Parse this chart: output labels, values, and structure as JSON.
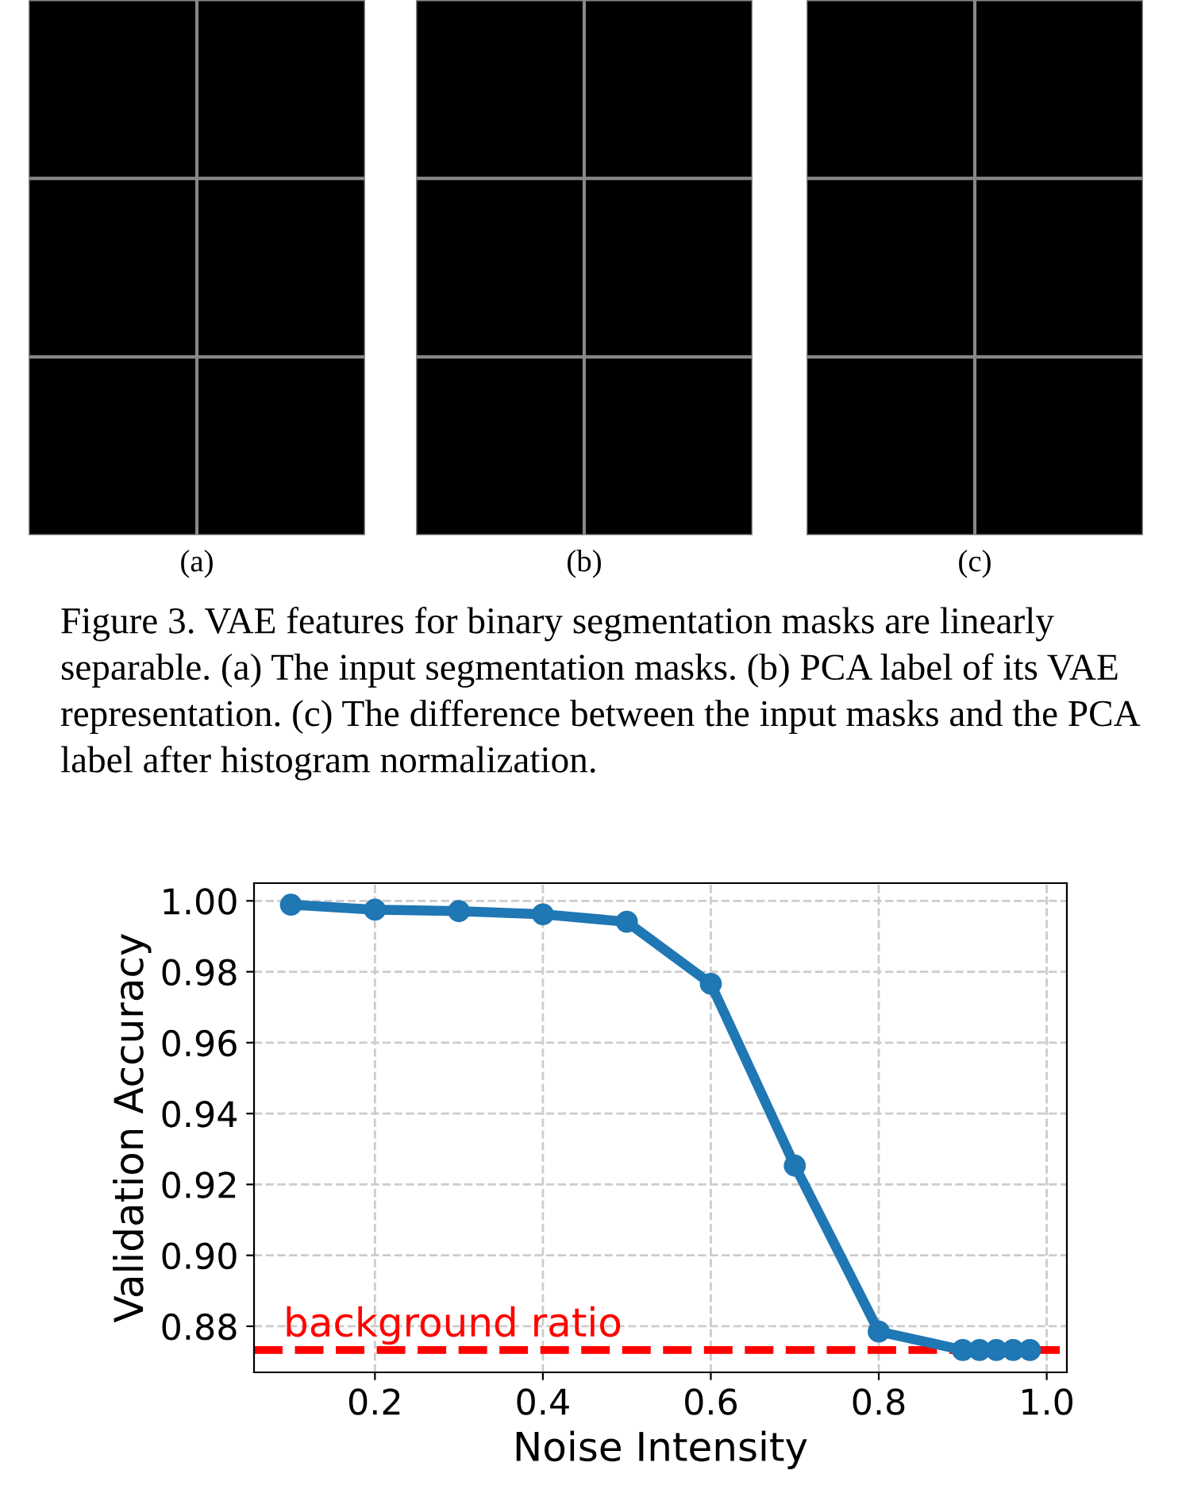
{
  "chart_data": {
    "type": "line",
    "xlabel": "Noise Intensity",
    "ylabel": "Validation Accuracy",
    "x": [
      0.1,
      0.2,
      0.3,
      0.4,
      0.5,
      0.6,
      0.7,
      0.8,
      0.9,
      0.92,
      0.94,
      0.96,
      0.98
    ],
    "series": [
      {
        "color": "#1f77b4",
        "values": [
          0.9989,
          0.9975,
          0.9971,
          0.9962,
          0.9941,
          0.9766,
          0.9253,
          0.8785,
          0.8733,
          0.8733,
          0.8733,
          0.8733,
          0.8733
        ]
      }
    ],
    "marker": "circle",
    "line_style": "solid",
    "xlim": [
      0.056,
      1.024
    ],
    "ylim": [
      0.867,
      1.005
    ],
    "xticks": [
      {
        "value": 0.2,
        "label": "0.2"
      },
      {
        "value": 0.4,
        "label": "0.4"
      },
      {
        "value": 0.6,
        "label": "0.6"
      },
      {
        "value": 0.8,
        "label": "0.8"
      },
      {
        "value": 1.0,
        "label": "1.0"
      }
    ],
    "yticks": [
      {
        "value": 0.88,
        "label": "0.88"
      },
      {
        "value": 0.9,
        "label": "0.90"
      },
      {
        "value": 0.92,
        "label": "0.92"
      },
      {
        "value": 0.94,
        "label": "0.94"
      },
      {
        "value": 0.96,
        "label": "0.96"
      },
      {
        "value": 0.98,
        "label": "0.98"
      },
      {
        "value": 1.0,
        "label": "1.00"
      }
    ],
    "grid": true,
    "ref_lines": [
      {
        "axis": "y",
        "value": 0.8733,
        "label": "background ratio",
        "color": "#ff0000",
        "line_style": "dashed"
      }
    ],
    "annotations": [
      "(a)",
      "(b)",
      "(c)",
      "Figure 3. VAE features for binary segmentation masks are linearly separable. (a) The input segmentation masks. (b) PCA label of its VAE representation. (c) The difference between the input masks and the PCA label after histogram normalization."
    ]
  }
}
